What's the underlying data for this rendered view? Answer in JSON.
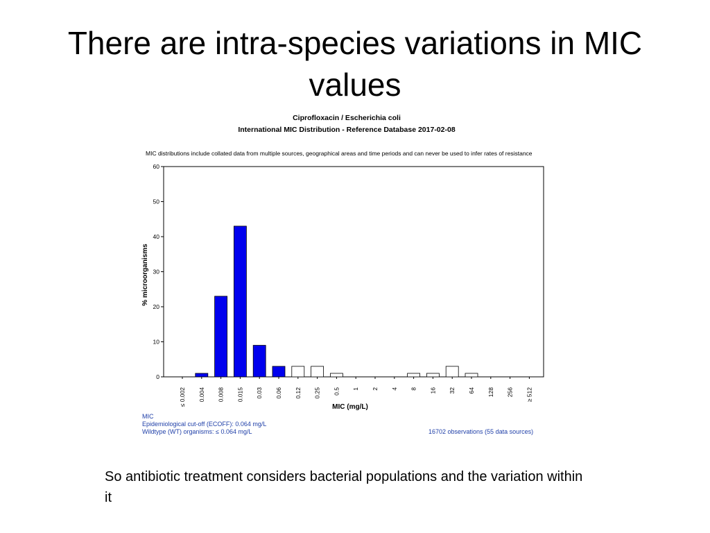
{
  "slide": {
    "title": "There are intra-species variations in MIC values",
    "caption": "So antibiotic treatment considers bacterial populations and the variation within it"
  },
  "chart_data": {
    "type": "bar",
    "title": "Ciprofloxacin / Escherichia coli",
    "subtitle": "International MIC Distribution - Reference Database 2017-02-08",
    "note": "MIC distributions include collated data from multiple sources, geographical areas and time periods and can never be used to infer rates of resistance",
    "xlabel": "MIC (mg/L)",
    "ylabel": "% microorganisms",
    "ylim": [
      0,
      60
    ],
    "yticks": [
      "0",
      "10",
      "20",
      "30",
      "40",
      "50",
      "60"
    ],
    "categories": [
      "≤ 0.002",
      "0.004",
      "0.008",
      "0.015",
      "0.03",
      "0.06",
      "0.12",
      "0.25",
      "0.5",
      "1",
      "2",
      "4",
      "8",
      "16",
      "32",
      "64",
      "128",
      "256",
      "≥ 512"
    ],
    "values": [
      0,
      1,
      23,
      43,
      9,
      3,
      3,
      3,
      1,
      0,
      0,
      0,
      1,
      1,
      3,
      1,
      0,
      0,
      0
    ],
    "wildtype_filled": [
      true,
      true,
      true,
      true,
      true,
      true,
      false,
      false,
      false,
      false,
      false,
      false,
      false,
      false,
      false,
      false,
      false,
      false,
      false
    ],
    "colors": {
      "wildtype": "#0000ee",
      "non_wildtype": "#ffffff",
      "footer_text": "#1f3fa8"
    },
    "footer": {
      "line1": "MIC",
      "line2": "Epidemiological cut-off (ECOFF): 0.064 mg/L",
      "line3": "Wildtype (WT) organisms: ≤ 0.064 mg/L",
      "observations": "16702 observations (55 data sources)"
    }
  }
}
